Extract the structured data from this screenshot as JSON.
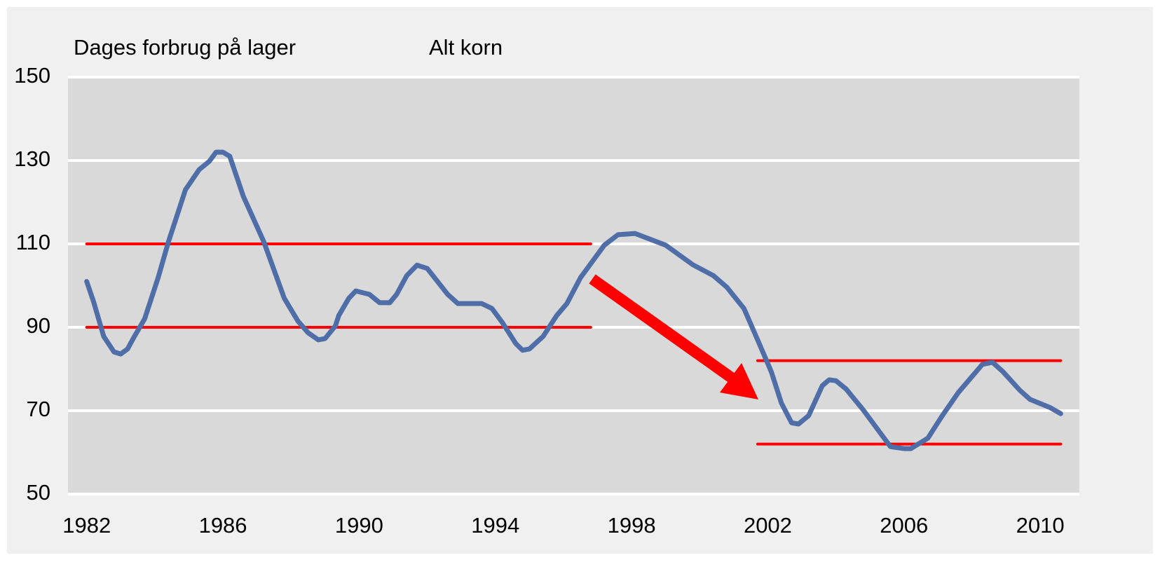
{
  "chart_data": {
    "type": "line",
    "title": "Dages forbrug på lager",
    "subtitle": "Alt korn",
    "xlim": [
      1981.45,
      2011.15
    ],
    "xticks": [
      1982,
      1986,
      1990,
      1994,
      1998,
      2002,
      2006,
      2010
    ],
    "ylim": [
      50,
      150
    ],
    "yticks": [
      50,
      70,
      90,
      110,
      130,
      150
    ],
    "grid": true,
    "series": [
      {
        "color": "#4f6ea8",
        "x": [
          1982,
          1982.2,
          1982.5,
          1982.8,
          1983.0,
          1983.2,
          1983.4,
          1983.7,
          1984.1,
          1984.4,
          1984.7,
          1984.9,
          1985.3,
          1985.6,
          1985.8,
          1986.0,
          1986.2,
          1986.6,
          1987.2,
          1987.8,
          1988.2,
          1988.5,
          1988.8,
          1989.0,
          1989.3,
          1989.4,
          1989.7,
          1989.9,
          1990.3,
          1990.6,
          1990.9,
          1991.1,
          1991.4,
          1991.7,
          1992.0,
          1992.6,
          1992.9,
          1993.6,
          1993.9,
          1994.2,
          1994.6,
          1994.8,
          1995.0,
          1995.4,
          1995.8,
          1996.1,
          1996.5,
          1997.2,
          1997.6,
          1998.1,
          1999.0,
          1999.8,
          2000.4,
          2000.8,
          2001.3,
          2001.7,
          2002.1,
          2002.4,
          2002.7,
          2002.9,
          2003.2,
          2003.6,
          2003.8,
          2004.0,
          2004.3,
          2004.8,
          2005.6,
          2006.0,
          2006.2,
          2006.7,
          2007.1,
          2007.6,
          2008.3,
          2008.6,
          2008.9,
          2009.4,
          2009.7,
          2010.3,
          2010.6
        ],
        "values": [
          101,
          96.2,
          87.8,
          84.1,
          83.6,
          84.8,
          87.8,
          92,
          102,
          110.5,
          118,
          123,
          127.8,
          129.8,
          132,
          132,
          131,
          121.4,
          110.5,
          97,
          91.5,
          88.7,
          87,
          87.3,
          90.3,
          92.8,
          97,
          98.7,
          97.9,
          95.9,
          95.9,
          97.9,
          102.4,
          104.9,
          104.1,
          97.9,
          95.7,
          95.7,
          94.5,
          91.2,
          86.1,
          84.5,
          84.8,
          87.8,
          92.8,
          95.7,
          101.9,
          109.7,
          112.2,
          112.5,
          109.7,
          105,
          102.4,
          99.6,
          94.5,
          87,
          79.4,
          71.8,
          67.1,
          66.8,
          68.8,
          76,
          77.4,
          77.2,
          75.2,
          70.2,
          61.4,
          60.9,
          60.9,
          63.4,
          68.5,
          74.4,
          81.1,
          81.6,
          79.4,
          74.9,
          72.7,
          70.7,
          69.3
        ]
      },
      {
        "color": "#ff0000",
        "x": [
          1982,
          1996.8
        ],
        "values": [
          110,
          110
        ]
      },
      {
        "color": "#ff0000",
        "x": [
          1982,
          1996.8
        ],
        "values": [
          90,
          90
        ]
      },
      {
        "color": "#ff0000",
        "x": [
          2001.7,
          2010.6
        ],
        "values": [
          82,
          82
        ]
      },
      {
        "color": "#ff0000",
        "x": [
          2001.7,
          2010.6
        ],
        "values": [
          62,
          62
        ]
      }
    ]
  }
}
